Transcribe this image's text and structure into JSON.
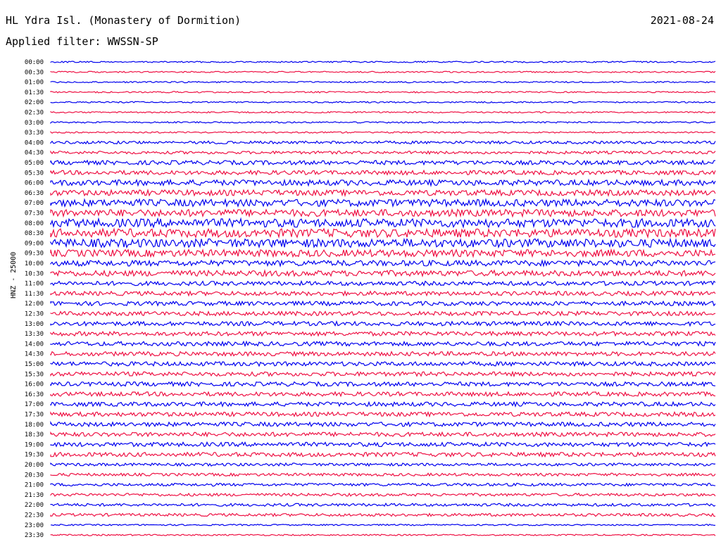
{
  "header": {
    "title": "HL Ydra Isl. (Monastery of Dormition)",
    "filter": "Applied filter: WWSSN-SP",
    "date": "2021-08-24",
    "channel": "HNZ - 25000"
  },
  "chart_data": {
    "type": "line",
    "title": "HL Ydra Isl. (Monastery of Dormition)",
    "ylabel": "HNZ - 25000",
    "series_colors": [
      "#0000ee",
      "#ee1144"
    ],
    "rows": [
      "00:00",
      "00:30",
      "01:00",
      "01:30",
      "02:00",
      "02:30",
      "03:00",
      "03:30",
      "04:00",
      "04:30",
      "05:00",
      "05:30",
      "06:00",
      "06:30",
      "07:00",
      "07:30",
      "08:00",
      "08:30",
      "09:00",
      "09:30",
      "10:00",
      "10:30",
      "11:00",
      "11:30",
      "12:00",
      "12:30",
      "13:00",
      "13:30",
      "14:00",
      "14:30",
      "15:00",
      "15:30",
      "16:00",
      "16:30",
      "17:00",
      "17:30",
      "18:00",
      "18:30",
      "19:00",
      "19:30",
      "20:00",
      "20:30",
      "21:00",
      "21:30",
      "22:00",
      "22:30",
      "23:00",
      "23:30"
    ],
    "noise_level": [
      1,
      1,
      1,
      1,
      1,
      1,
      1,
      1,
      2,
      2,
      3,
      3,
      4,
      4,
      5,
      5,
      6,
      6,
      6,
      5,
      4,
      4,
      3,
      3,
      3,
      3,
      3,
      3,
      3,
      3,
      3,
      3,
      3,
      3,
      3,
      3,
      3,
      3,
      3,
      3,
      2,
      2,
      2,
      2,
      2,
      2,
      1,
      1
    ]
  }
}
